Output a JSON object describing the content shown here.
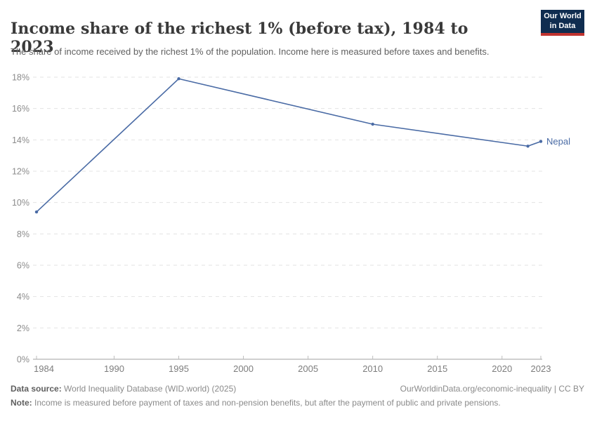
{
  "chart_data": {
    "type": "line",
    "title": "Income share of the richest 1% (before tax), 1984 to 2023",
    "subtitle": "The share of income received by the richest 1% of the population. Income here is measured before taxes and benefits.",
    "series": [
      {
        "name": "Nepal",
        "color": "#4a6ba5",
        "points": [
          {
            "x": 1984,
            "y": 9.4
          },
          {
            "x": 1995,
            "y": 17.9
          },
          {
            "x": 2010,
            "y": 15.0
          },
          {
            "x": 2022,
            "y": 13.6
          },
          {
            "x": 2023,
            "y": 13.9
          }
        ]
      }
    ],
    "xlim": [
      1984,
      2023
    ],
    "ylim": [
      0,
      18
    ],
    "x_ticks": [
      1984,
      1990,
      1995,
      2000,
      2005,
      2010,
      2015,
      2020,
      2023
    ],
    "y_ticks": [
      0,
      2,
      4,
      6,
      8,
      10,
      12,
      14,
      16,
      18
    ],
    "y_tick_suffix": "%",
    "xlabel": "",
    "ylabel": "",
    "grid": "horizontal-dashed",
    "legend_position": "end-of-line-label"
  },
  "logo": {
    "line1": "Our World",
    "line2": "in Data",
    "bg_color": "#102d50",
    "accent_color": "#c0332f"
  },
  "footer": {
    "source_label": "Data source:",
    "source_text": " World Inequality Database (WID.world) (2025)",
    "link_text": "OurWorldinData.org/economic-inequality | CC BY",
    "note_label": "Note:",
    "note_text": " Income is measured before payment of taxes and non-pension benefits, but after the payment of public and private pensions."
  },
  "colors": {
    "line": "#4a6ba5",
    "gridline": "#e3e3e3",
    "axis": "#a1a1a1",
    "tick_label": "#7d7d7d",
    "y_label": "#8c8c8c"
  }
}
